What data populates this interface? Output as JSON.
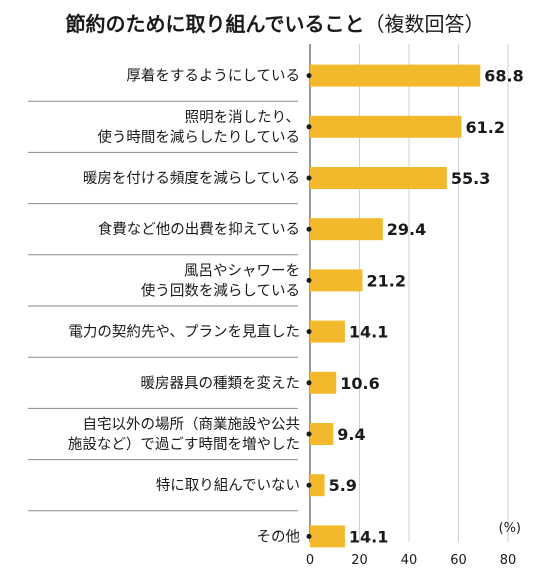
{
  "chart_data": {
    "type": "bar",
    "orientation": "horizontal",
    "title": "節約のために取り組んでいること",
    "subtitle": "（複数回答）",
    "unit": "(%)",
    "xlim": [
      0,
      80
    ],
    "xticks": [
      "0",
      "20",
      "40",
      "60",
      "80"
    ],
    "grid": true,
    "bar_color": "#f2b92c",
    "categories": [
      [
        "厚着をするようにしている"
      ],
      [
        "照明を消したり、",
        "使う時間を減らしたりしている"
      ],
      [
        "暖房を付ける頻度を減らしている"
      ],
      [
        "食費など他の出費を抑えている"
      ],
      [
        "風呂やシャワーを",
        "使う回数を減らしている"
      ],
      [
        "電力の契約先や、プランを見直した"
      ],
      [
        "暖房器具の種類を変えた"
      ],
      [
        "自宅以外の場所（商業施設や公共",
        "施設など）で過ごす時間を増やした"
      ],
      [
        "特に取り組んでいない"
      ],
      [
        "その他"
      ]
    ],
    "values": [
      68.8,
      61.2,
      55.3,
      29.4,
      21.2,
      14.1,
      10.6,
      9.4,
      5.9,
      14.1
    ],
    "value_labels": [
      "68.8",
      "61.2",
      "55.3",
      "29.4",
      "21.2",
      "14.1",
      "10.6",
      "9.4",
      "5.9",
      "14.1"
    ]
  }
}
